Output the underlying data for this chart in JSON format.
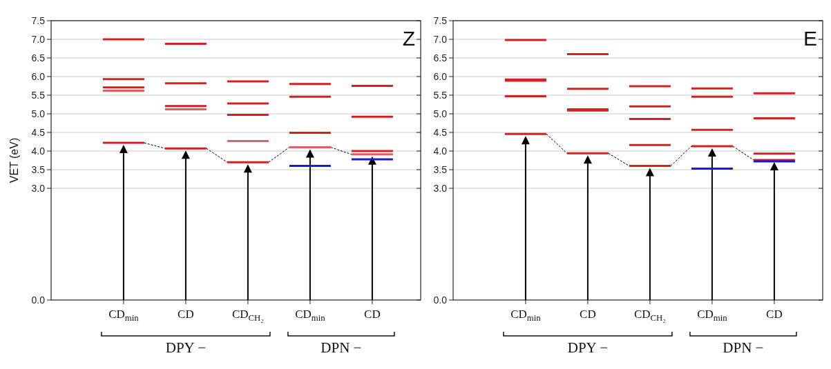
{
  "chart_data": [
    {
      "type": "line",
      "title": "Z",
      "ylabel": "VET (eV)",
      "categories": [
        null,
        "CD$_{min}$",
        null,
        null,
        "CD",
        null,
        null,
        "CD$_{CH₂}$",
        null,
        null,
        "CD$_{min}$",
        null,
        null,
        "CD",
        null
      ],
      "series": [
        {
          "color": "#d42020",
          "values": [
            7.0,
            7.0,
            7.0,
            null,
            null,
            null,
            null,
            null,
            null,
            null,
            null,
            null,
            null,
            null,
            null
          ]
        },
        {
          "color": "#d42020",
          "values": [
            5.93,
            5.93,
            5.93,
            null,
            null,
            null,
            null,
            null,
            null,
            null,
            null,
            null,
            null,
            null,
            null
          ]
        },
        {
          "color": "#d42020",
          "values": [
            5.71,
            5.71,
            5.71,
            null,
            null,
            null,
            null,
            null,
            null,
            null,
            null,
            null,
            null,
            null,
            null
          ]
        },
        {
          "color": "#e06060",
          "values": [
            5.62,
            5.62,
            5.62,
            null,
            null,
            null,
            null,
            null,
            null,
            null,
            null,
            null,
            null,
            null,
            null
          ]
        },
        {
          "color": "#d42020",
          "values": [
            4.22,
            4.22,
            4.22,
            null,
            null,
            null,
            null,
            null,
            null,
            null,
            null,
            null,
            null,
            null,
            null
          ]
        },
        {
          "color": "#d42020",
          "values": [
            null,
            null,
            null,
            6.88,
            6.88,
            6.88,
            null,
            null,
            null,
            null,
            null,
            null,
            null,
            null,
            null
          ]
        },
        {
          "color": "#d42020",
          "values": [
            null,
            null,
            null,
            5.82,
            5.82,
            5.82,
            null,
            null,
            null,
            null,
            null,
            null,
            null,
            null,
            null
          ]
        },
        {
          "color": "#d42020",
          "values": [
            null,
            null,
            null,
            5.21,
            5.21,
            5.21,
            null,
            null,
            null,
            null,
            null,
            null,
            null,
            null,
            null
          ]
        },
        {
          "color": "#e06060",
          "values": [
            null,
            null,
            null,
            5.12,
            5.12,
            5.12,
            null,
            null,
            null,
            null,
            null,
            null,
            null,
            null,
            null
          ]
        },
        {
          "color": "#d42020",
          "values": [
            null,
            null,
            null,
            4.07,
            4.07,
            4.07,
            null,
            null,
            null,
            null,
            null,
            null,
            null,
            null,
            null
          ]
        },
        {
          "color": "#d42020",
          "values": [
            null,
            null,
            null,
            null,
            null,
            null,
            5.87,
            5.87,
            5.87,
            null,
            null,
            null,
            null,
            null,
            null
          ]
        },
        {
          "color": "#d42020",
          "values": [
            null,
            null,
            null,
            null,
            null,
            null,
            5.28,
            5.28,
            5.28,
            null,
            null,
            null,
            null,
            null,
            null
          ]
        },
        {
          "color": "#d42020",
          "values": [
            null,
            null,
            null,
            null,
            null,
            null,
            4.97,
            4.97,
            4.97,
            null,
            null,
            null,
            null,
            null,
            null
          ]
        },
        {
          "color": "#e06060",
          "values": [
            null,
            null,
            null,
            null,
            null,
            null,
            4.27,
            4.27,
            4.27,
            null,
            null,
            null,
            null,
            null,
            null
          ]
        },
        {
          "color": "#d42020",
          "values": [
            null,
            null,
            null,
            null,
            null,
            null,
            3.7,
            3.7,
            3.7,
            null,
            null,
            null,
            null,
            null,
            null
          ]
        },
        {
          "color": "#d42020",
          "values": [
            null,
            null,
            null,
            null,
            null,
            null,
            null,
            null,
            null,
            5.8,
            5.8,
            5.8,
            null,
            null,
            null
          ]
        },
        {
          "color": "#d42020",
          "values": [
            null,
            null,
            null,
            null,
            null,
            null,
            null,
            null,
            null,
            5.46,
            5.46,
            5.46,
            null,
            null,
            null
          ]
        },
        {
          "color": "#d42020",
          "values": [
            null,
            null,
            null,
            null,
            null,
            null,
            null,
            null,
            null,
            4.49,
            4.49,
            4.49,
            null,
            null,
            null
          ]
        },
        {
          "color": "#e06060",
          "values": [
            null,
            null,
            null,
            null,
            null,
            null,
            null,
            null,
            null,
            4.1,
            4.1,
            4.1,
            null,
            null,
            null
          ]
        },
        {
          "color": "#1a1ad0",
          "values": [
            null,
            null,
            null,
            null,
            null,
            null,
            null,
            null,
            null,
            3.6,
            3.6,
            3.6,
            null,
            null,
            null
          ]
        },
        {
          "color": "#d42020",
          "values": [
            null,
            null,
            null,
            null,
            null,
            null,
            null,
            null,
            null,
            null,
            null,
            null,
            5.75,
            5.75,
            5.75
          ]
        },
        {
          "color": "#d42020",
          "values": [
            null,
            null,
            null,
            null,
            null,
            null,
            null,
            null,
            null,
            null,
            null,
            null,
            4.92,
            4.92,
            4.92
          ]
        },
        {
          "color": "#d42020",
          "values": [
            null,
            null,
            null,
            null,
            null,
            null,
            null,
            null,
            null,
            null,
            null,
            null,
            4.0,
            4.0,
            4.0
          ]
        },
        {
          "color": "#e06060",
          "values": [
            null,
            null,
            null,
            null,
            null,
            null,
            null,
            null,
            null,
            null,
            null,
            null,
            3.91,
            3.91,
            3.91
          ]
        },
        {
          "color": "#1a1ad0",
          "values": [
            null,
            null,
            null,
            null,
            null,
            null,
            null,
            null,
            null,
            null,
            null,
            null,
            3.78,
            3.78,
            3.78
          ]
        },
        {
          "color": "#000000",
          "line_style": "dashed",
          "values": [
            null,
            null,
            4.22,
            4.07,
            null,
            4.07,
            3.7,
            null,
            3.7,
            4.1,
            null,
            4.1,
            3.91,
            null,
            null
          ]
        }
      ],
      "ylim": [
        0,
        7.5
      ],
      "yticks": [
        {
          "value": 0,
          "label": "0.0"
        },
        {
          "value": 3,
          "label": "3.0"
        },
        3.5,
        {
          "value": 4,
          "label": "4.0"
        },
        4.5,
        {
          "value": 5,
          "label": "5.0"
        },
        5.5,
        {
          "value": 6,
          "label": "6.0"
        },
        6.5,
        {
          "value": 7,
          "label": "7.0"
        },
        7.5
      ],
      "grid": "y",
      "annotations": [
        "DPY −",
        "DPN −"
      ]
    },
    {
      "type": "line",
      "title": "E",
      "categories": [
        null,
        "CD$_{min}$",
        null,
        null,
        "CD",
        null,
        null,
        "CD$_{CH₂}$",
        null,
        null,
        "CD$_{min}$",
        null,
        null,
        "CD",
        null
      ],
      "series": [
        {
          "color": "#d42020",
          "values": [
            6.98,
            6.98,
            6.98,
            null,
            null,
            null,
            null,
            null,
            null,
            null,
            null,
            null,
            null,
            null,
            null
          ]
        },
        {
          "color": "#d42020",
          "values": [
            5.92,
            5.92,
            5.92,
            null,
            null,
            null,
            null,
            null,
            null,
            null,
            null,
            null,
            null,
            null,
            null
          ]
        },
        {
          "color": "#d42020",
          "values": [
            5.89,
            5.89,
            5.89,
            null,
            null,
            null,
            null,
            null,
            null,
            null,
            null,
            null,
            null,
            null,
            null
          ]
        },
        {
          "color": "#d42020",
          "values": [
            5.47,
            5.47,
            5.47,
            null,
            null,
            null,
            null,
            null,
            null,
            null,
            null,
            null,
            null,
            null,
            null
          ]
        },
        {
          "color": "#d42020",
          "values": [
            4.46,
            4.46,
            4.46,
            null,
            null,
            null,
            null,
            null,
            null,
            null,
            null,
            null,
            null,
            null,
            null
          ]
        },
        {
          "color": "#d42020",
          "values": [
            null,
            null,
            null,
            6.6,
            6.6,
            6.6,
            null,
            null,
            null,
            null,
            null,
            null,
            null,
            null,
            null
          ]
        },
        {
          "color": "#d42020",
          "values": [
            null,
            null,
            null,
            5.67,
            5.67,
            5.67,
            null,
            null,
            null,
            null,
            null,
            null,
            null,
            null,
            null
          ]
        },
        {
          "color": "#d42020",
          "values": [
            null,
            null,
            null,
            5.12,
            5.12,
            5.12,
            null,
            null,
            null,
            null,
            null,
            null,
            null,
            null,
            null
          ]
        },
        {
          "color": "#d42020",
          "values": [
            null,
            null,
            null,
            5.09,
            5.09,
            5.09,
            null,
            null,
            null,
            null,
            null,
            null,
            null,
            null,
            null
          ]
        },
        {
          "color": "#d42020",
          "values": [
            null,
            null,
            null,
            3.94,
            3.94,
            3.94,
            null,
            null,
            null,
            null,
            null,
            null,
            null,
            null,
            null
          ]
        },
        {
          "color": "#d42020",
          "values": [
            null,
            null,
            null,
            null,
            null,
            null,
            5.74,
            5.74,
            5.74,
            null,
            null,
            null,
            null,
            null,
            null
          ]
        },
        {
          "color": "#d42020",
          "values": [
            null,
            null,
            null,
            null,
            null,
            null,
            5.2,
            5.2,
            5.2,
            null,
            null,
            null,
            null,
            null,
            null
          ]
        },
        {
          "color": "#d42020",
          "values": [
            null,
            null,
            null,
            null,
            null,
            null,
            4.86,
            4.86,
            4.86,
            null,
            null,
            null,
            null,
            null,
            null
          ]
        },
        {
          "color": "#d42020",
          "values": [
            null,
            null,
            null,
            null,
            null,
            null,
            4.16,
            4.16,
            4.16,
            null,
            null,
            null,
            null,
            null,
            null
          ]
        },
        {
          "color": "#d42020",
          "values": [
            null,
            null,
            null,
            null,
            null,
            null,
            3.6,
            3.6,
            3.6,
            null,
            null,
            null,
            null,
            null,
            null
          ]
        },
        {
          "color": "#d42020",
          "values": [
            null,
            null,
            null,
            null,
            null,
            null,
            null,
            null,
            null,
            5.68,
            5.68,
            5.68,
            null,
            null,
            null
          ]
        },
        {
          "color": "#d42020",
          "values": [
            null,
            null,
            null,
            null,
            null,
            null,
            null,
            null,
            null,
            5.46,
            5.46,
            5.46,
            null,
            null,
            null
          ]
        },
        {
          "color": "#d42020",
          "values": [
            null,
            null,
            null,
            null,
            null,
            null,
            null,
            null,
            null,
            4.57,
            4.57,
            4.57,
            null,
            null,
            null
          ]
        },
        {
          "color": "#d42020",
          "values": [
            null,
            null,
            null,
            null,
            null,
            null,
            null,
            null,
            null,
            4.13,
            4.13,
            4.13,
            null,
            null,
            null
          ]
        },
        {
          "color": "#1a1ad0",
          "values": [
            null,
            null,
            null,
            null,
            null,
            null,
            null,
            null,
            null,
            3.53,
            3.53,
            3.53,
            null,
            null,
            null
          ]
        },
        {
          "color": "#d42020",
          "values": [
            null,
            null,
            null,
            null,
            null,
            null,
            null,
            null,
            null,
            null,
            null,
            null,
            5.55,
            5.55,
            5.55
          ]
        },
        {
          "color": "#d42020",
          "values": [
            null,
            null,
            null,
            null,
            null,
            null,
            null,
            null,
            null,
            null,
            null,
            null,
            4.88,
            4.88,
            4.88
          ]
        },
        {
          "color": "#d42020",
          "values": [
            null,
            null,
            null,
            null,
            null,
            null,
            null,
            null,
            null,
            null,
            null,
            null,
            3.93,
            3.93,
            3.93
          ]
        },
        {
          "color": "#d42020",
          "values": [
            null,
            null,
            null,
            null,
            null,
            null,
            null,
            null,
            null,
            null,
            null,
            null,
            3.76,
            3.76,
            3.76
          ]
        },
        {
          "color": "#1a1ad0",
          "values": [
            null,
            null,
            null,
            null,
            null,
            null,
            null,
            null,
            null,
            null,
            null,
            null,
            3.72,
            3.72,
            3.72
          ]
        },
        {
          "color": "#000000",
          "line_style": "dashed",
          "values": [
            null,
            null,
            4.46,
            3.94,
            null,
            3.94,
            3.6,
            null,
            3.6,
            4.13,
            null,
            4.13,
            3.76,
            null,
            null
          ]
        }
      ],
      "ylim": [
        0,
        7.5
      ],
      "yticks": [
        {
          "value": 0,
          "label": "0.0"
        },
        {
          "value": 3,
          "label": "3.0"
        },
        3.5,
        {
          "value": 4,
          "label": "4.0"
        },
        4.5,
        {
          "value": 5,
          "label": "5.0"
        },
        5.5,
        {
          "value": 6,
          "label": "6.0"
        },
        6.5,
        {
          "value": 7,
          "label": "7.0"
        },
        7.5
      ],
      "grid": "y",
      "annotations": [
        "DPY −",
        "DPN −"
      ]
    }
  ]
}
